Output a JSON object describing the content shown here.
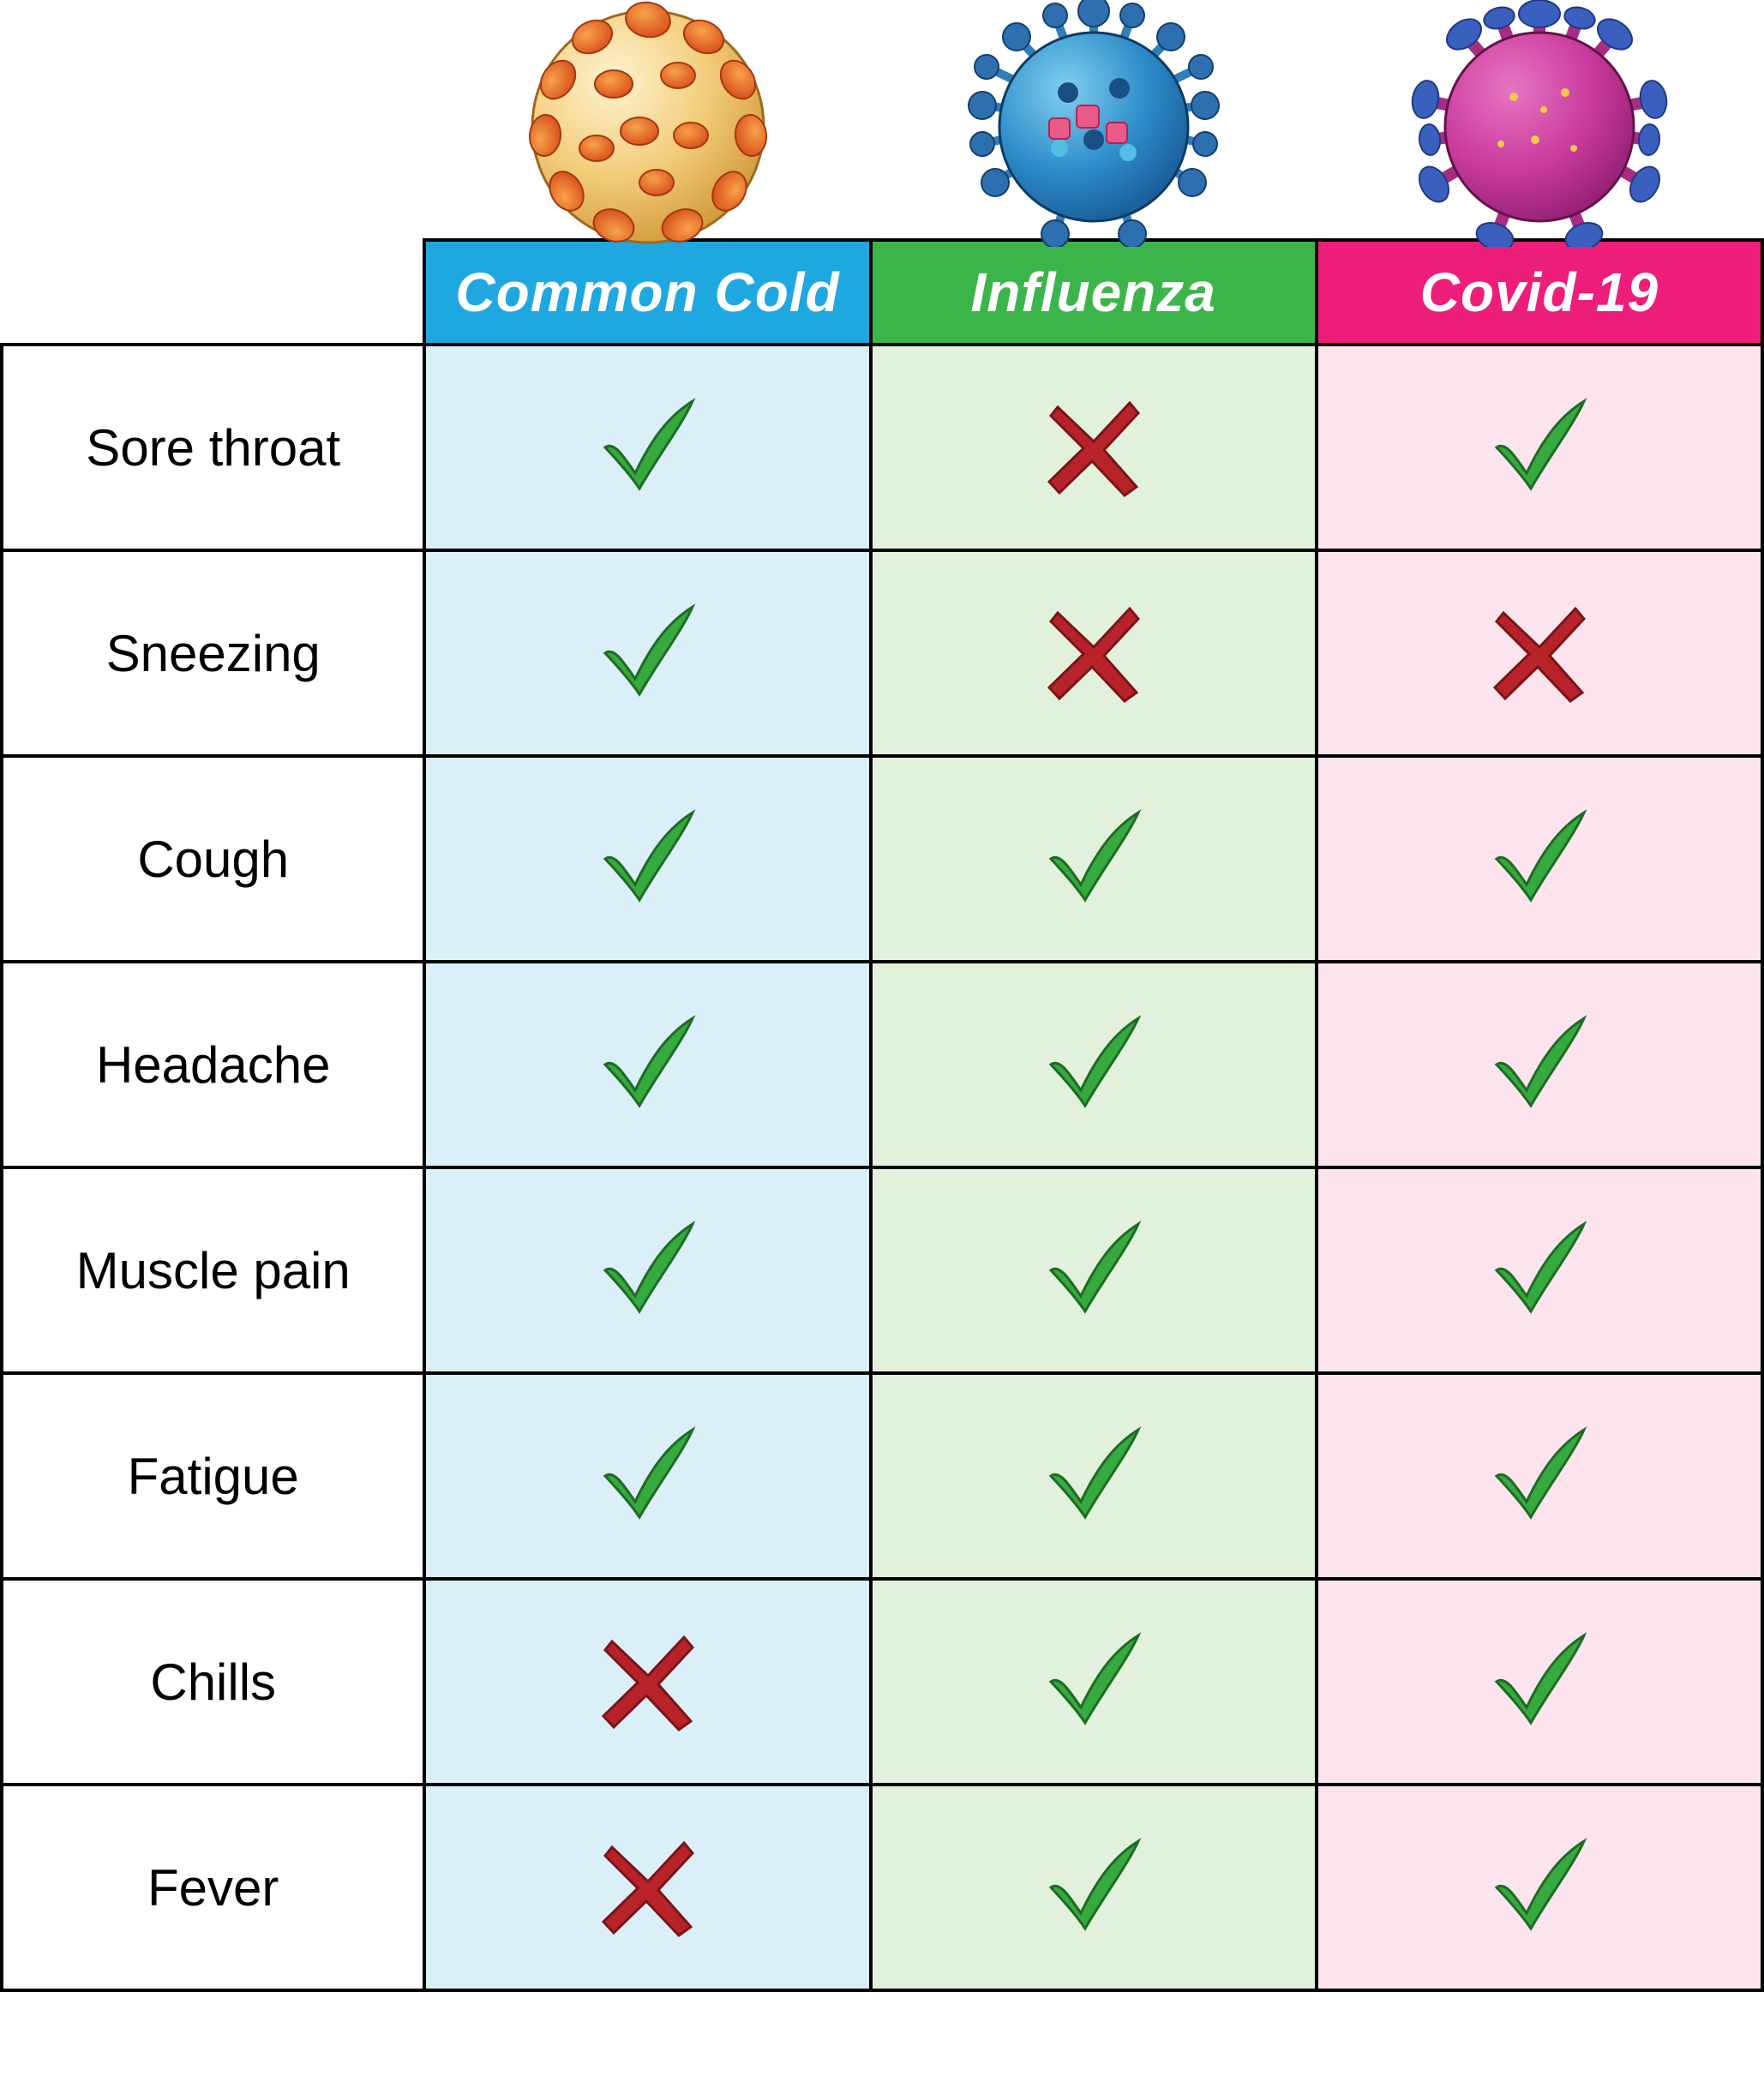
{
  "columns": [
    {
      "label": "Common Cold",
      "header_bg": "#1fa8e0",
      "cell_bg": "#daeff8",
      "virus": "cold"
    },
    {
      "label": "Influenza",
      "header_bg": "#3bb54a",
      "cell_bg": "#e2f1db",
      "virus": "flu"
    },
    {
      "label": "Covid-19",
      "header_bg": "#ec1e79",
      "cell_bg": "#fbe4ee",
      "virus": "covid"
    }
  ],
  "rows": [
    {
      "label": "Sore throat",
      "cells": [
        "yes",
        "no",
        "yes"
      ]
    },
    {
      "label": "Sneezing",
      "cells": [
        "yes",
        "no",
        "no"
      ]
    },
    {
      "label": "Cough",
      "cells": [
        "yes",
        "yes",
        "yes"
      ]
    },
    {
      "label": "Headache",
      "cells": [
        "yes",
        "yes",
        "yes"
      ]
    },
    {
      "label": "Muscle pain",
      "cells": [
        "yes",
        "yes",
        "yes"
      ]
    },
    {
      "label": "Fatigue",
      "cells": [
        "yes",
        "yes",
        "yes"
      ]
    },
    {
      "label": "Chills",
      "cells": [
        "no",
        "yes",
        "yes"
      ]
    },
    {
      "label": "Fever",
      "cells": [
        "no",
        "yes",
        "yes"
      ]
    }
  ],
  "icons": {
    "check_color": "#36a93f",
    "cross_color": "#b8232a"
  }
}
